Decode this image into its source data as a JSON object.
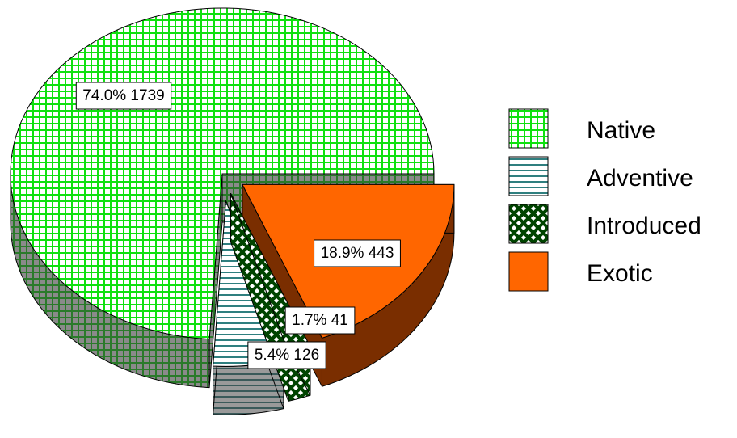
{
  "chart_data": {
    "type": "pie",
    "style": "3d-exploded",
    "title": "",
    "categories": [
      "Native",
      "Adventive",
      "Introduced",
      "Exotic"
    ],
    "values": [
      1739,
      126,
      41,
      443
    ],
    "percentages": [
      "74.0%",
      "5.4%",
      "1.7%",
      "18.9%"
    ],
    "data_labels": [
      "74.0% 1739",
      "5.4% 126",
      "1.7% 41",
      "18.9% 443"
    ],
    "legend": {
      "position": "right",
      "entries": [
        {
          "label": "Native",
          "pattern": "green-grid"
        },
        {
          "label": "Adventive",
          "pattern": "teal-horizontal-lines"
        },
        {
          "label": "Introduced",
          "pattern": "dark-green-diagonal-lattice"
        },
        {
          "label": "Exotic",
          "pattern": "solid-orange"
        }
      ]
    },
    "colors": {
      "Native": "#00ee00",
      "Adventive": "#2f7f7f",
      "Introduced": "#004400",
      "Exotic": "#ff6600",
      "Exotic_side": "#7a2e00"
    }
  }
}
